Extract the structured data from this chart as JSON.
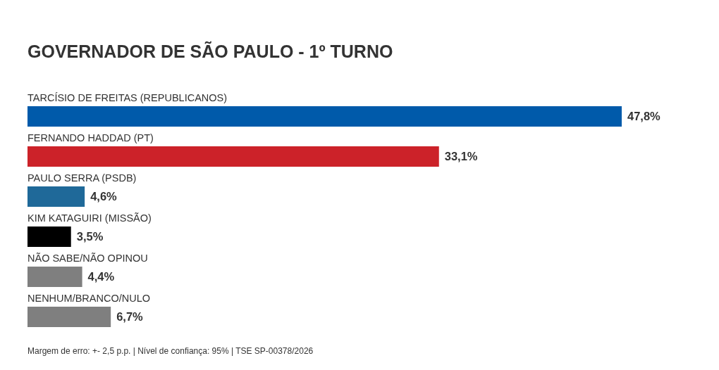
{
  "chart_data": {
    "type": "bar",
    "orientation": "horizontal",
    "title": "GOVERNADOR DE SÃO PAULO - 1º TURNO",
    "categories": [
      "TARCÍSIO DE FREITAS (REPUBLICANOS)",
      "FERNANDO HADDAD (PT)",
      "PAULO SERRA (PSDB)",
      "KIM KATAGUIRI (MISSÃO)",
      "NÃO SABE/NÃO OPINOU",
      "NENHUM/BRANCO/NULO"
    ],
    "values": [
      47.8,
      33.1,
      4.6,
      3.5,
      4.4,
      6.7
    ],
    "colors": [
      "#005aaa",
      "#cc2229",
      "#1f6999",
      "#000000",
      "#7f7f7f",
      "#7f7f7f"
    ],
    "value_labels": [
      "47,8%",
      "33,1%",
      "4,6%",
      "3,5%",
      "4,4%",
      "6,7%"
    ],
    "annotations": [
      "Margem de erro: +- 2,5 p.p. | Nível de confiança: 95% | TSE SP-00378/2026"
    ]
  }
}
